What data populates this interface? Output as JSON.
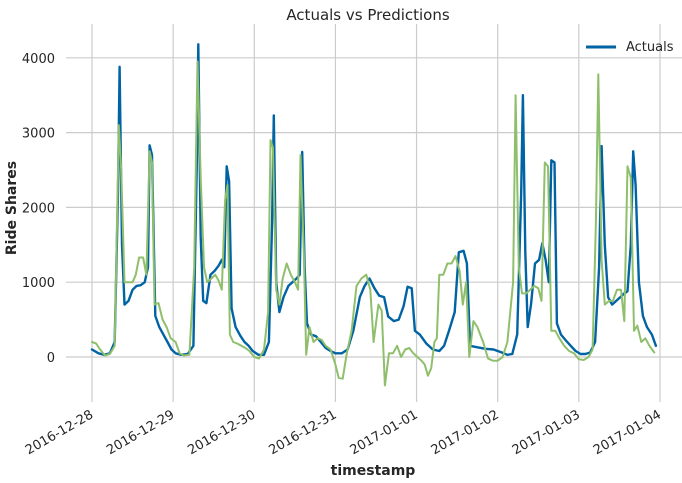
{
  "chart_data": {
    "type": "line",
    "title": "Actuals vs Predictions",
    "xlabel": "timestamp",
    "ylabel": "Ride Shares",
    "ylim": [
      -600,
      4400
    ],
    "y_ticks": [
      0,
      1000,
      2000,
      3000,
      4000
    ],
    "x_ticks": [
      "2016-12-28",
      "2016-12-29",
      "2016-12-30",
      "2016-12-31",
      "2017-01-01",
      "2017-01-02",
      "2017-01-03",
      "2017-01-04"
    ],
    "xlim_days": [
      -0.2,
      7.2
    ],
    "grid": true,
    "legend": {
      "position": "top-right",
      "entries": [
        "Actuals"
      ]
    },
    "series": [
      {
        "name": "Actuals",
        "color": "#0063a3",
        "points": [
          [
            0.0,
            100
          ],
          [
            0.08,
            50
          ],
          [
            0.15,
            30
          ],
          [
            0.22,
            50
          ],
          [
            0.28,
            200
          ],
          [
            0.32,
            2200
          ],
          [
            0.34,
            3880
          ],
          [
            0.37,
            1500
          ],
          [
            0.4,
            700
          ],
          [
            0.45,
            750
          ],
          [
            0.5,
            900
          ],
          [
            0.55,
            950
          ],
          [
            0.6,
            960
          ],
          [
            0.65,
            1000
          ],
          [
            0.69,
            1200
          ],
          [
            0.71,
            2830
          ],
          [
            0.74,
            2700
          ],
          [
            0.78,
            550
          ],
          [
            0.83,
            400
          ],
          [
            0.88,
            300
          ],
          [
            0.93,
            200
          ],
          [
            0.98,
            100
          ],
          [
            1.03,
            50
          ],
          [
            1.1,
            30
          ],
          [
            1.18,
            40
          ],
          [
            1.25,
            150
          ],
          [
            1.29,
            2500
          ],
          [
            1.31,
            4180
          ],
          [
            1.34,
            1600
          ],
          [
            1.37,
            750
          ],
          [
            1.41,
            720
          ],
          [
            1.46,
            1100
          ],
          [
            1.51,
            1150
          ],
          [
            1.56,
            1220
          ],
          [
            1.6,
            1300
          ],
          [
            1.63,
            1200
          ],
          [
            1.66,
            2550
          ],
          [
            1.69,
            2350
          ],
          [
            1.72,
            650
          ],
          [
            1.77,
            400
          ],
          [
            1.83,
            280
          ],
          [
            1.88,
            200
          ],
          [
            1.93,
            150
          ],
          [
            1.98,
            80
          ],
          [
            2.05,
            30
          ],
          [
            2.12,
            30
          ],
          [
            2.18,
            200
          ],
          [
            2.22,
            1800
          ],
          [
            2.24,
            3230
          ],
          [
            2.27,
            1000
          ],
          [
            2.31,
            600
          ],
          [
            2.36,
            800
          ],
          [
            2.42,
            950
          ],
          [
            2.47,
            1000
          ],
          [
            2.52,
            1050
          ],
          [
            2.56,
            1100
          ],
          [
            2.59,
            2740
          ],
          [
            2.62,
            1200
          ],
          [
            2.65,
            450
          ],
          [
            2.7,
            300
          ],
          [
            2.76,
            280
          ],
          [
            2.82,
            200
          ],
          [
            2.88,
            120
          ],
          [
            2.94,
            80
          ],
          [
            3.0,
            50
          ],
          [
            3.08,
            50
          ],
          [
            3.15,
            100
          ],
          [
            3.22,
            350
          ],
          [
            3.3,
            800
          ],
          [
            3.36,
            950
          ],
          [
            3.42,
            1050
          ],
          [
            3.48,
            920
          ],
          [
            3.54,
            820
          ],
          [
            3.6,
            800
          ],
          [
            3.65,
            540
          ],
          [
            3.72,
            480
          ],
          [
            3.78,
            500
          ],
          [
            3.84,
            680
          ],
          [
            3.89,
            940
          ],
          [
            3.94,
            920
          ],
          [
            3.98,
            350
          ],
          [
            4.04,
            300
          ],
          [
            4.12,
            180
          ],
          [
            4.2,
            100
          ],
          [
            4.28,
            80
          ],
          [
            4.34,
            150
          ],
          [
            4.4,
            350
          ],
          [
            4.47,
            600
          ],
          [
            4.52,
            1400
          ],
          [
            4.58,
            1420
          ],
          [
            4.62,
            1250
          ],
          [
            4.66,
            150
          ],
          [
            4.75,
            130
          ],
          [
            4.85,
            110
          ],
          [
            4.95,
            100
          ],
          [
            5.05,
            60
          ],
          [
            5.12,
            30
          ],
          [
            5.18,
            40
          ],
          [
            5.24,
            300
          ],
          [
            5.29,
            2200
          ],
          [
            5.31,
            3500
          ],
          [
            5.34,
            1400
          ],
          [
            5.37,
            400
          ],
          [
            5.41,
            700
          ],
          [
            5.46,
            1250
          ],
          [
            5.51,
            1300
          ],
          [
            5.55,
            1520
          ],
          [
            5.59,
            1300
          ],
          [
            5.63,
            1000
          ],
          [
            5.66,
            2630
          ],
          [
            5.7,
            2600
          ],
          [
            5.73,
            450
          ],
          [
            5.78,
            300
          ],
          [
            5.84,
            220
          ],
          [
            5.9,
            150
          ],
          [
            5.96,
            80
          ],
          [
            6.02,
            40
          ],
          [
            6.08,
            40
          ],
          [
            6.14,
            60
          ],
          [
            6.2,
            200
          ],
          [
            6.25,
            1200
          ],
          [
            6.28,
            2820
          ],
          [
            6.32,
            1500
          ],
          [
            6.36,
            800
          ],
          [
            6.41,
            700
          ],
          [
            6.46,
            750
          ],
          [
            6.51,
            800
          ],
          [
            6.56,
            850
          ],
          [
            6.6,
            880
          ],
          [
            6.64,
            1500
          ],
          [
            6.67,
            2750
          ],
          [
            6.7,
            2300
          ],
          [
            6.74,
            1000
          ],
          [
            6.79,
            550
          ],
          [
            6.84,
            400
          ],
          [
            6.9,
            300
          ],
          [
            6.95,
            150
          ]
        ]
      },
      {
        "name": "",
        "color": "#8fbf6b",
        "points": [
          [
            0.0,
            200
          ],
          [
            0.05,
            180
          ],
          [
            0.1,
            100
          ],
          [
            0.16,
            20
          ],
          [
            0.22,
            40
          ],
          [
            0.28,
            150
          ],
          [
            0.33,
            3100
          ],
          [
            0.36,
            2500
          ],
          [
            0.4,
            1000
          ],
          [
            0.45,
            1000
          ],
          [
            0.5,
            1000
          ],
          [
            0.54,
            1100
          ],
          [
            0.58,
            1330
          ],
          [
            0.63,
            1330
          ],
          [
            0.67,
            1100
          ],
          [
            0.71,
            2750
          ],
          [
            0.74,
            2600
          ],
          [
            0.77,
            700
          ],
          [
            0.82,
            720
          ],
          [
            0.87,
            500
          ],
          [
            0.92,
            400
          ],
          [
            0.97,
            250
          ],
          [
            1.03,
            200
          ],
          [
            1.08,
            50
          ],
          [
            1.13,
            20
          ],
          [
            1.2,
            30
          ],
          [
            1.26,
            1200
          ],
          [
            1.3,
            3950
          ],
          [
            1.34,
            2400
          ],
          [
            1.38,
            1200
          ],
          [
            1.42,
            1000
          ],
          [
            1.47,
            1050
          ],
          [
            1.52,
            1100
          ],
          [
            1.56,
            1020
          ],
          [
            1.6,
            900
          ],
          [
            1.64,
            2100
          ],
          [
            1.67,
            2300
          ],
          [
            1.7,
            300
          ],
          [
            1.74,
            200
          ],
          [
            1.79,
            180
          ],
          [
            1.84,
            150
          ],
          [
            1.89,
            120
          ],
          [
            1.94,
            80
          ],
          [
            2.0,
            0
          ],
          [
            2.06,
            -20
          ],
          [
            2.12,
            100
          ],
          [
            2.17,
            600
          ],
          [
            2.2,
            2900
          ],
          [
            2.23,
            2800
          ],
          [
            2.27,
            900
          ],
          [
            2.31,
            700
          ],
          [
            2.35,
            1050
          ],
          [
            2.4,
            1250
          ],
          [
            2.45,
            1100
          ],
          [
            2.5,
            1000
          ],
          [
            2.54,
            900
          ],
          [
            2.57,
            2700
          ],
          [
            2.61,
            1400
          ],
          [
            2.64,
            30
          ],
          [
            2.68,
            400
          ],
          [
            2.73,
            200
          ],
          [
            2.78,
            250
          ],
          [
            2.83,
            230
          ],
          [
            2.88,
            150
          ],
          [
            2.94,
            100
          ],
          [
            3.0,
            -100
          ],
          [
            3.04,
            -280
          ],
          [
            3.09,
            -290
          ],
          [
            3.14,
            50
          ],
          [
            3.2,
            350
          ],
          [
            3.26,
            950
          ],
          [
            3.32,
            1050
          ],
          [
            3.38,
            1100
          ],
          [
            3.43,
            900
          ],
          [
            3.47,
            200
          ],
          [
            3.53,
            700
          ],
          [
            3.57,
            620
          ],
          [
            3.61,
            -380
          ],
          [
            3.66,
            50
          ],
          [
            3.71,
            50
          ],
          [
            3.76,
            150
          ],
          [
            3.81,
            0
          ],
          [
            3.86,
            100
          ],
          [
            3.91,
            120
          ],
          [
            3.96,
            50
          ],
          [
            4.01,
            0
          ],
          [
            4.06,
            -50
          ],
          [
            4.1,
            -100
          ],
          [
            4.14,
            -250
          ],
          [
            4.18,
            -150
          ],
          [
            4.22,
            200
          ],
          [
            4.25,
            250
          ],
          [
            4.28,
            1100
          ],
          [
            4.33,
            1100
          ],
          [
            4.38,
            1250
          ],
          [
            4.43,
            1250
          ],
          [
            4.48,
            1350
          ],
          [
            4.53,
            1150
          ],
          [
            4.57,
            700
          ],
          [
            4.61,
            1000
          ],
          [
            4.65,
            0
          ],
          [
            4.7,
            480
          ],
          [
            4.75,
            400
          ],
          [
            4.82,
            200
          ],
          [
            4.88,
            -20
          ],
          [
            4.94,
            -50
          ],
          [
            5.0,
            -50
          ],
          [
            5.06,
            0
          ],
          [
            5.12,
            200
          ],
          [
            5.19,
            1000
          ],
          [
            5.22,
            3500
          ],
          [
            5.26,
            1200
          ],
          [
            5.3,
            850
          ],
          [
            5.35,
            850
          ],
          [
            5.4,
            900
          ],
          [
            5.45,
            950
          ],
          [
            5.5,
            920
          ],
          [
            5.54,
            750
          ],
          [
            5.58,
            2600
          ],
          [
            5.62,
            2550
          ],
          [
            5.66,
            350
          ],
          [
            5.71,
            350
          ],
          [
            5.76,
            250
          ],
          [
            5.82,
            150
          ],
          [
            5.88,
            80
          ],
          [
            5.94,
            50
          ],
          [
            6.0,
            -30
          ],
          [
            6.06,
            -40
          ],
          [
            6.12,
            0
          ],
          [
            6.17,
            100
          ],
          [
            6.21,
            1800
          ],
          [
            6.24,
            3780
          ],
          [
            6.28,
            1300
          ],
          [
            6.32,
            700
          ],
          [
            6.37,
            750
          ],
          [
            6.42,
            750
          ],
          [
            6.47,
            900
          ],
          [
            6.52,
            900
          ],
          [
            6.56,
            480
          ],
          [
            6.6,
            2550
          ],
          [
            6.64,
            2400
          ],
          [
            6.68,
            350
          ],
          [
            6.72,
            420
          ],
          [
            6.77,
            200
          ],
          [
            6.82,
            250
          ],
          [
            6.87,
            150
          ],
          [
            6.93,
            60
          ]
        ]
      }
    ]
  }
}
